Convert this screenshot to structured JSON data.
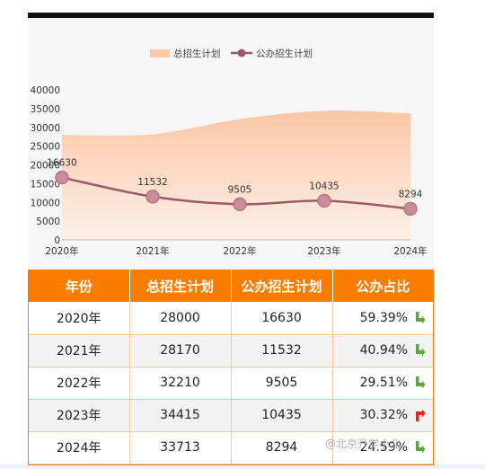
{
  "chart_data": {
    "type": "area",
    "categories": [
      "2020年",
      "2021年",
      "2022年",
      "2023年",
      "2024年"
    ],
    "series": [
      {
        "name": "总招生计划",
        "type": "area",
        "values": [
          28000,
          28170,
          32210,
          34415,
          33713
        ],
        "color": "#fbc8a8"
      },
      {
        "name": "公办招生计划",
        "type": "line",
        "values": [
          16630,
          11532,
          9505,
          10435,
          8294
        ],
        "color": "#9a5a6a",
        "data_labels": [
          "16630",
          "11532",
          "9505",
          "10435",
          "8294"
        ]
      }
    ],
    "y_ticks": [
      "40000",
      "35000",
      "30000",
      "25000",
      "20000",
      "15000",
      "10000",
      "5000",
      "0"
    ],
    "ylim": [
      0,
      40000
    ],
    "legend_position": "top-center",
    "grid": false
  },
  "table": {
    "headers": [
      "年份",
      "总招生计划",
      "公办招生计划",
      "公办占比"
    ],
    "rows": [
      {
        "year": "2020年",
        "total": "28000",
        "public": "16630",
        "ratio": "59.39%",
        "trend": "down",
        "trend_icon": "green-down-arrow-icon"
      },
      {
        "year": "2021年",
        "total": "28170",
        "public": "11532",
        "ratio": "40.94%",
        "trend": "down",
        "trend_icon": "green-down-arrow-icon"
      },
      {
        "year": "2022年",
        "total": "32210",
        "public": "9505",
        "ratio": "29.51%",
        "trend": "down",
        "trend_icon": "green-down-arrow-icon"
      },
      {
        "year": "2023年",
        "total": "34415",
        "public": "10435",
        "ratio": "30.32%",
        "trend": "up",
        "trend_icon": "red-up-arrow-icon"
      },
      {
        "year": "2024年",
        "total": "33713",
        "public": "8294",
        "ratio": "24.59%",
        "trend": "down",
        "trend_icon": "green-down-arrow-icon"
      }
    ]
  },
  "colors": {
    "header_bg": "#fa7d00",
    "down_arrow": "#5aa83a",
    "up_arrow": "#e8231c",
    "line": "#9a5a6a",
    "marker": "#c98d99",
    "area_top": "#fbc8a8"
  },
  "watermark": {
    "text": "@北京升学小北"
  }
}
